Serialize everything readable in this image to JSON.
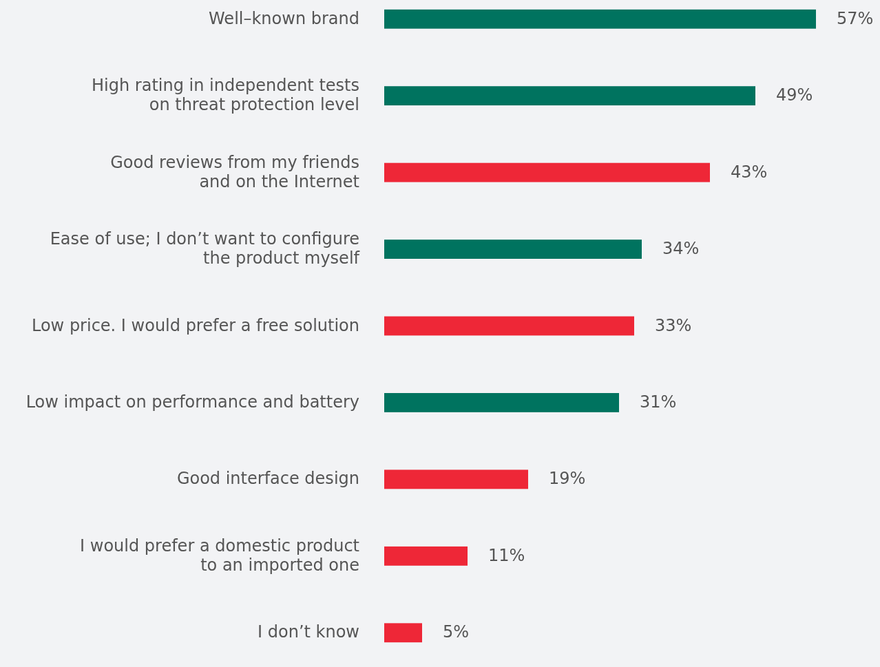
{
  "chart_data": {
    "type": "bar",
    "orientation": "horizontal",
    "categories": [
      "Well–known brand",
      "High rating in independent tests\non threat protection level",
      "Good reviews from my friends\nand on the Internet",
      "Ease of use; I don’t want to configure\nthe product myself",
      "Low price. I would prefer a free solution",
      "Low impact on performance and battery",
      "Good interface design",
      "I would prefer a domestic product\nto an imported one",
      "I don’t know"
    ],
    "values": [
      57,
      49,
      43,
      34,
      33,
      31,
      19,
      11,
      5
    ],
    "colors": [
      "#00735f",
      "#00735f",
      "#ee2737",
      "#00735f",
      "#ee2737",
      "#00735f",
      "#ee2737",
      "#ee2737",
      "#ee2737"
    ],
    "value_labels": [
      "57%",
      "49%",
      "43%",
      "34%",
      "33%",
      "31%",
      "19%",
      "11%",
      "5%"
    ]
  }
}
